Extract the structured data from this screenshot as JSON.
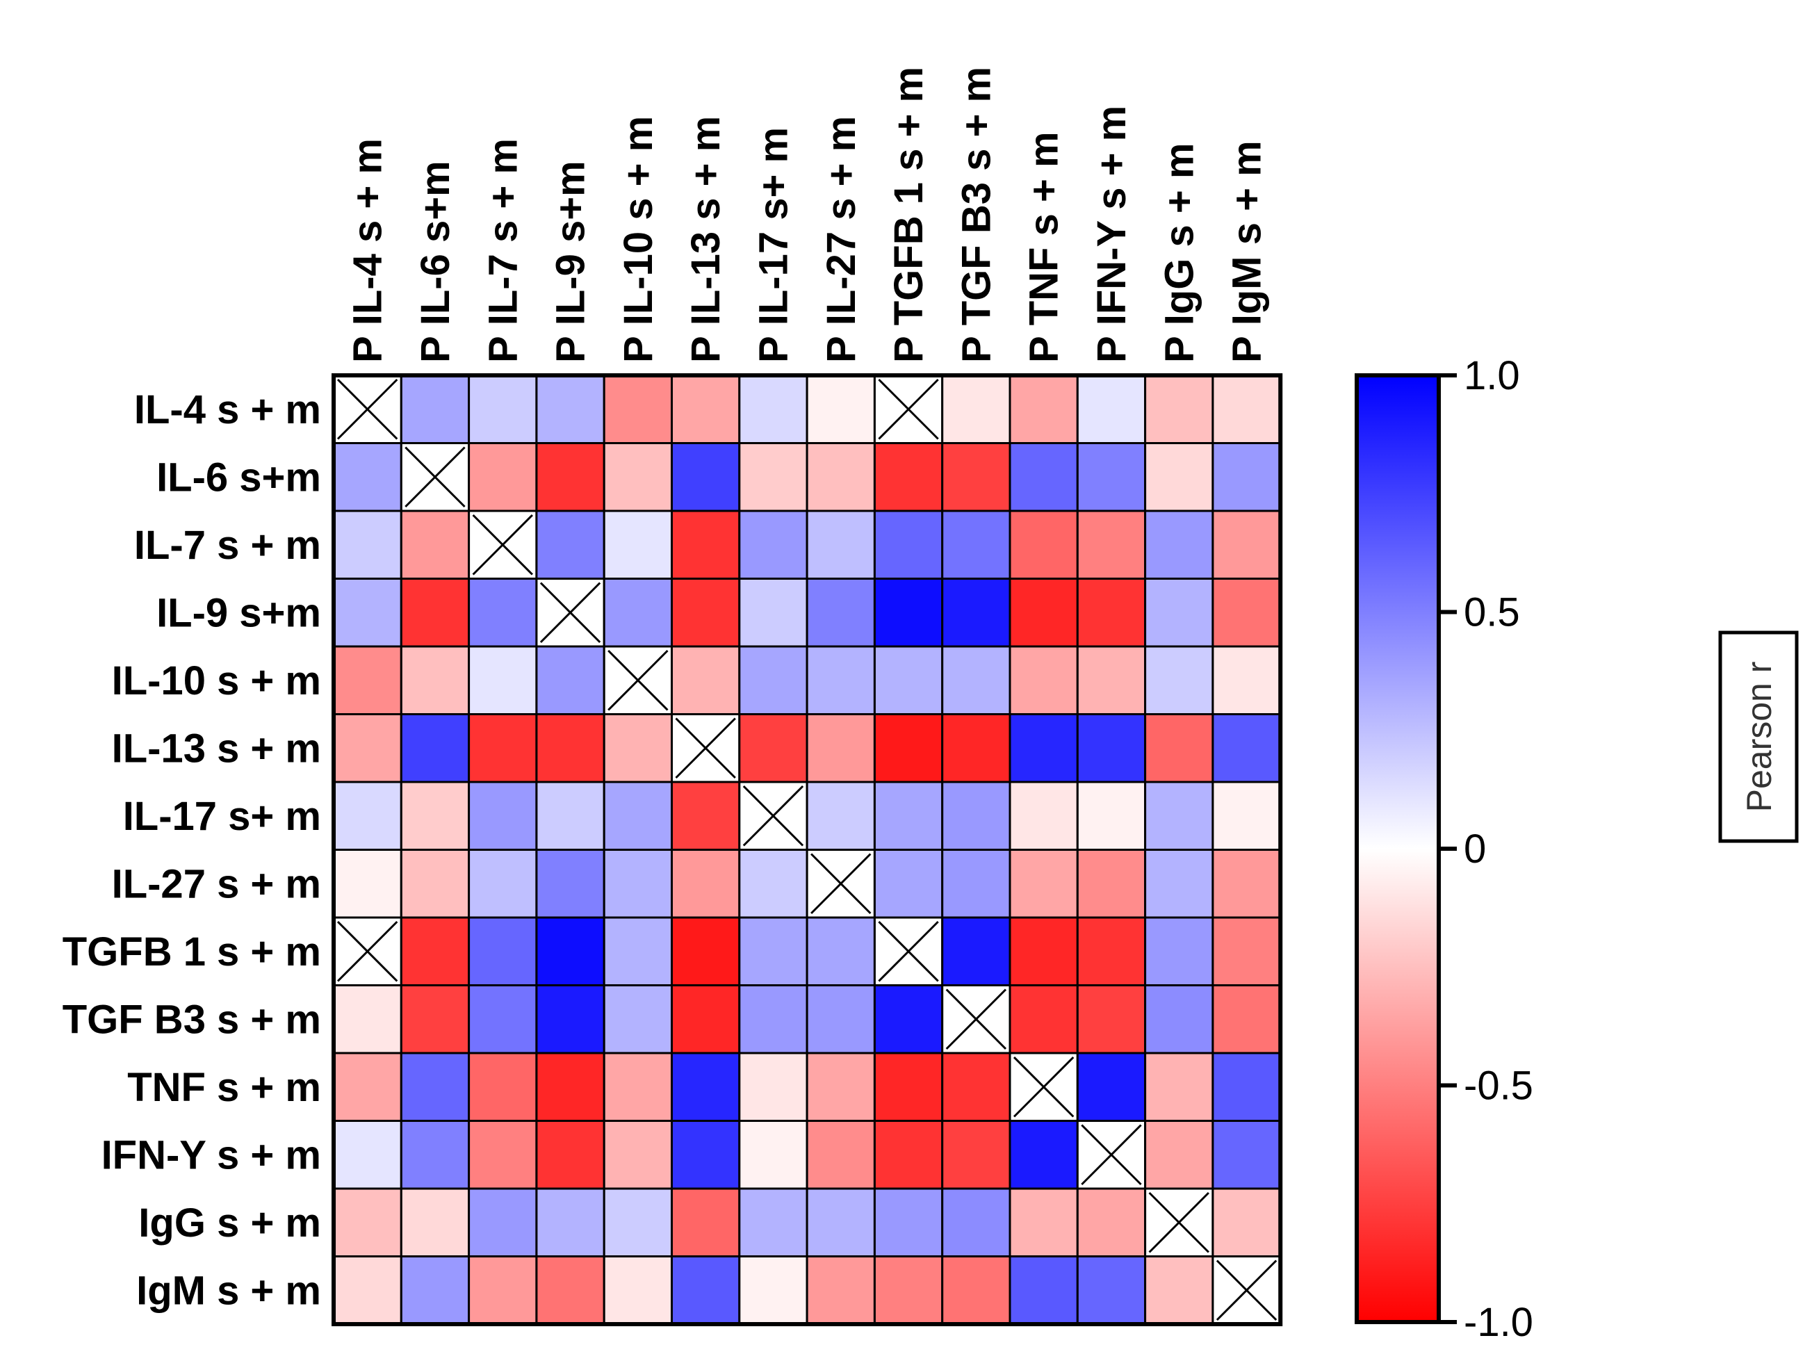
{
  "chart_data": {
    "type": "heatmap",
    "title": "",
    "column_labels": [
      "P IL-4 s + m",
      "P IL-6 s+m",
      "P IL-7 s + m",
      "P IL-9 s+m",
      "P IL-10 s + m",
      "P IL-13 s + m",
      "P IL-17 s+ m",
      "P IL-27 s + m",
      "P TGFB 1 s + m",
      "P TGF B3 s + m",
      "P TNF s + m",
      "P IFN-Y s + m",
      "P IgG s + m",
      "P IgM s + m"
    ],
    "row_labels": [
      "IL-4 s + m",
      "IL-6 s+m",
      "IL-7 s + m",
      "IL-9 s+m",
      "IL-10 s + m",
      "IL-13 s + m",
      "IL-17 s+ m",
      "IL-27 s + m",
      "TGFB 1 s + m",
      "TGF B3 s + m",
      "TNF s + m",
      "IFN-Y s + m",
      "IgG s + m",
      "IgM s + m"
    ],
    "values": [
      [
        null,
        0.35,
        0.2,
        0.3,
        -0.45,
        -0.35,
        0.15,
        -0.05,
        null,
        -0.1,
        -0.35,
        0.1,
        -0.25,
        -0.15
      ],
      [
        0.35,
        null,
        -0.4,
        -0.8,
        -0.25,
        0.75,
        -0.2,
        -0.25,
        -0.8,
        -0.75,
        0.6,
        0.5,
        -0.15,
        0.4
      ],
      [
        0.2,
        -0.4,
        null,
        0.5,
        0.1,
        -0.8,
        0.4,
        0.25,
        0.6,
        0.55,
        -0.6,
        -0.5,
        0.4,
        -0.4
      ],
      [
        0.3,
        -0.8,
        0.5,
        null,
        0.4,
        -0.8,
        0.2,
        0.5,
        0.95,
        0.9,
        -0.85,
        -0.8,
        0.3,
        -0.55
      ],
      [
        -0.45,
        -0.25,
        0.1,
        0.4,
        null,
        -0.3,
        0.35,
        0.3,
        0.3,
        0.3,
        -0.35,
        -0.3,
        0.2,
        -0.1
      ],
      [
        -0.35,
        0.75,
        -0.8,
        -0.8,
        -0.3,
        null,
        -0.75,
        -0.4,
        -0.9,
        -0.85,
        0.85,
        0.8,
        -0.6,
        0.65
      ],
      [
        0.15,
        -0.2,
        0.4,
        0.2,
        0.35,
        -0.75,
        null,
        0.2,
        0.35,
        0.4,
        -0.1,
        -0.05,
        0.3,
        -0.05
      ],
      [
        -0.05,
        -0.25,
        0.25,
        0.5,
        0.3,
        -0.4,
        0.2,
        null,
        0.35,
        0.4,
        -0.35,
        -0.45,
        0.3,
        -0.4
      ],
      [
        null,
        -0.8,
        0.6,
        0.95,
        0.3,
        -0.9,
        0.35,
        0.35,
        null,
        0.9,
        -0.85,
        -0.8,
        0.4,
        -0.5
      ],
      [
        -0.1,
        -0.75,
        0.55,
        0.9,
        0.3,
        -0.85,
        0.4,
        0.4,
        0.9,
        null,
        -0.8,
        -0.75,
        0.45,
        -0.55
      ],
      [
        -0.35,
        0.6,
        -0.6,
        -0.85,
        -0.35,
        0.85,
        -0.1,
        -0.35,
        -0.85,
        -0.8,
        null,
        0.9,
        -0.3,
        0.65
      ],
      [
        0.1,
        0.5,
        -0.5,
        -0.8,
        -0.3,
        0.8,
        -0.05,
        -0.45,
        -0.8,
        -0.75,
        0.9,
        null,
        -0.35,
        0.6
      ],
      [
        -0.25,
        -0.15,
        0.4,
        0.3,
        0.2,
        -0.6,
        0.3,
        0.3,
        0.4,
        0.45,
        -0.3,
        -0.35,
        null,
        -0.25
      ],
      [
        -0.15,
        0.4,
        -0.4,
        -0.55,
        -0.1,
        0.65,
        -0.05,
        -0.4,
        -0.5,
        -0.55,
        0.65,
        0.6,
        -0.25,
        null
      ]
    ],
    "colorbar": {
      "title": "Pearson r",
      "min": -1.0,
      "max": 1.0,
      "low_color": "#ff0000",
      "mid_color": "#ffffff",
      "high_color": "#0000ff",
      "ticks": [
        1.0,
        0.5,
        0,
        -0.5,
        -1.0
      ],
      "tick_labels": [
        "1.0",
        "0.5",
        "0",
        "-0.5",
        "-1.0"
      ]
    },
    "missing_marker": "crossed-box"
  }
}
